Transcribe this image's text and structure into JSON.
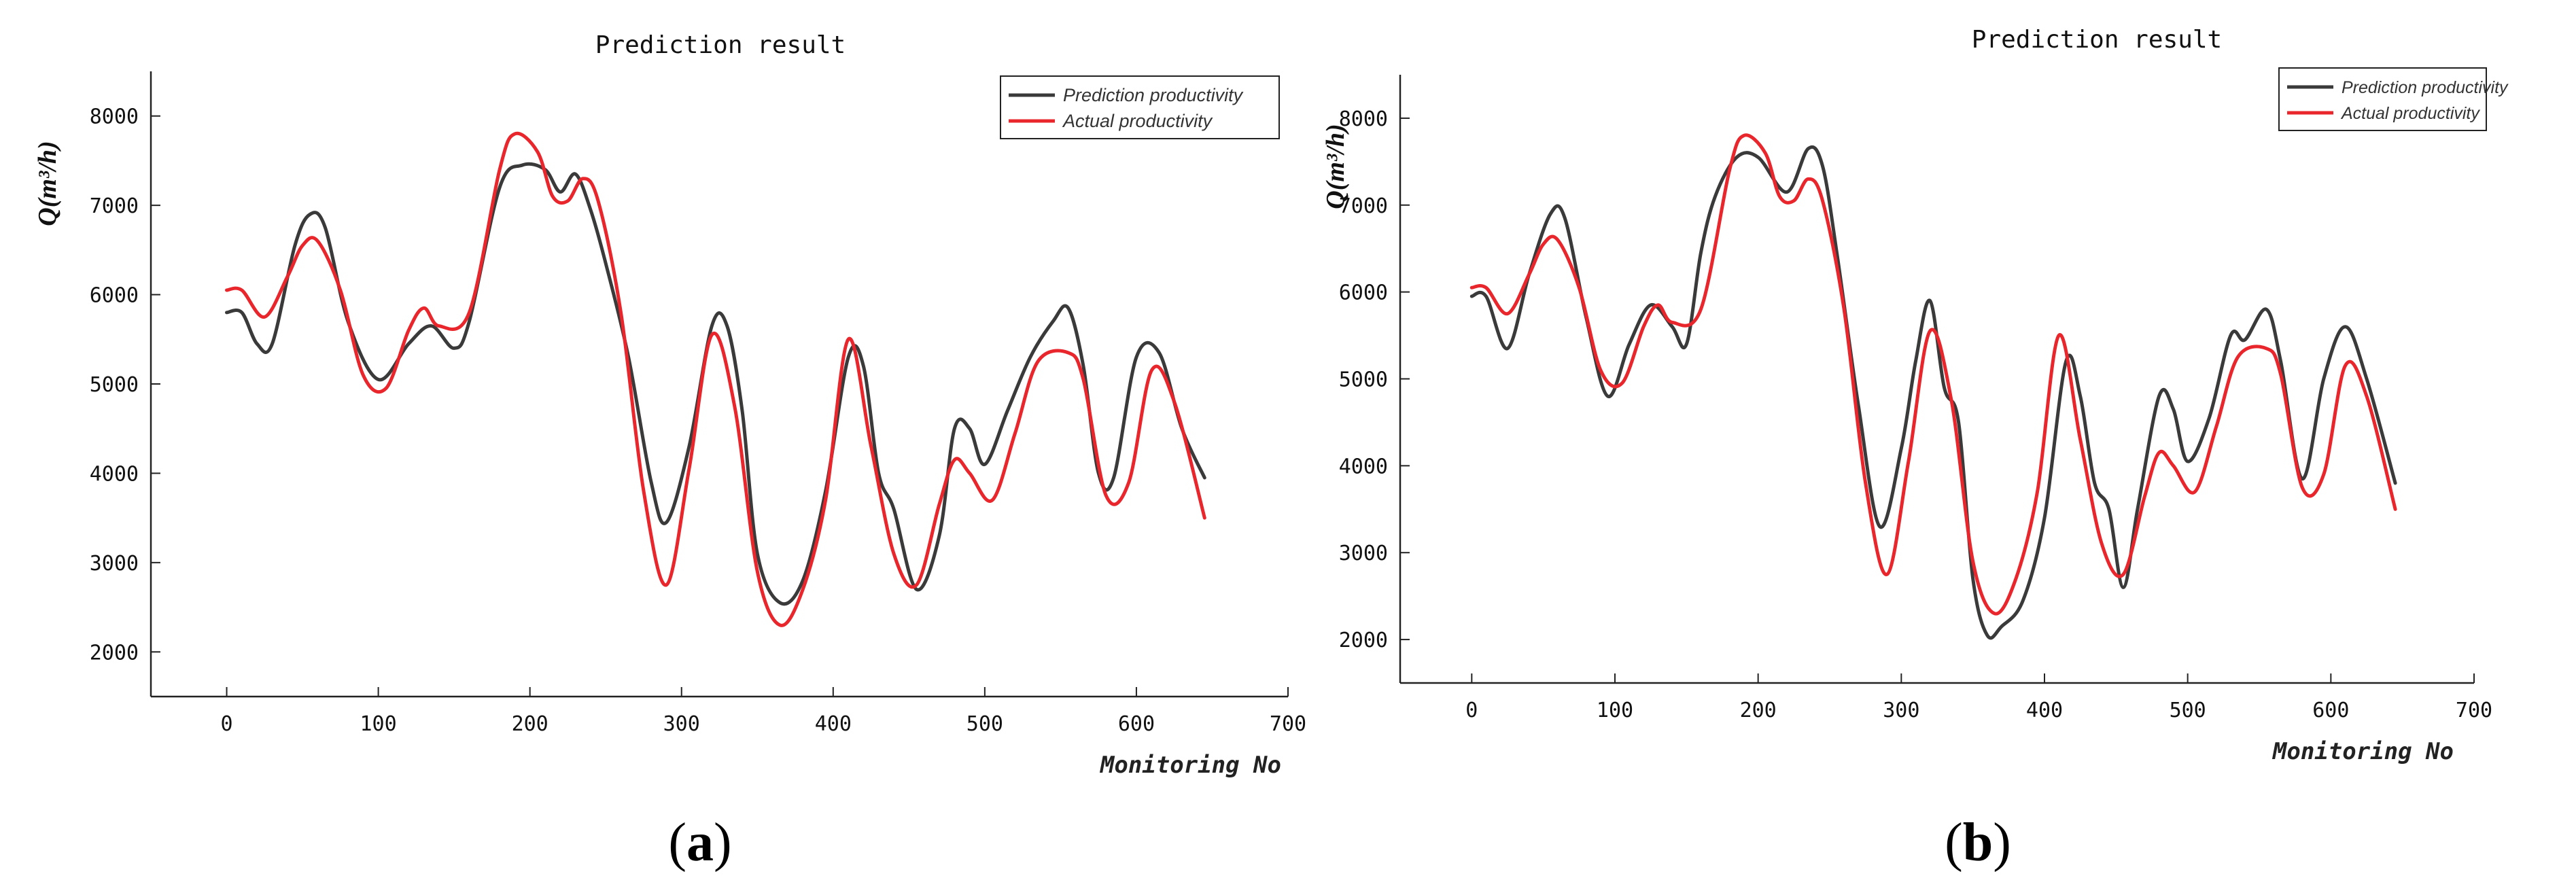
{
  "charts": [
    {
      "panel_label": "a",
      "colors": {
        "prediction": "#3a3a3a",
        "actual": "#e8262c"
      }
    },
    {
      "panel_label": "b",
      "colors": {
        "prediction": "#3a3a3a",
        "actual": "#e8262c"
      }
    }
  ],
  "chart_data": [
    {
      "type": "line",
      "title": "Prediction result",
      "xlabel": "Monitoring No",
      "ylabel": "Q(m³/h)",
      "xlim": [
        -50,
        700
      ],
      "ylim": [
        1500,
        8500
      ],
      "xticks": [
        0,
        100,
        200,
        300,
        400,
        500,
        600,
        700
      ],
      "yticks": [
        2000,
        3000,
        4000,
        5000,
        6000,
        7000,
        8000
      ],
      "legend": "top-right",
      "series": [
        {
          "name": "Prediction productivity",
          "x": [
            0,
            10,
            20,
            30,
            45,
            55,
            65,
            80,
            100,
            120,
            135,
            150,
            160,
            180,
            195,
            210,
            220,
            230,
            240,
            250,
            265,
            280,
            290,
            305,
            320,
            330,
            340,
            350,
            365,
            380,
            395,
            410,
            420,
            430,
            440,
            455,
            470,
            480,
            490,
            500,
            515,
            530,
            545,
            555,
            565,
            575,
            585,
            600,
            615,
            630,
            645
          ],
          "y": [
            5800,
            5800,
            5450,
            5450,
            6550,
            6900,
            6750,
            5700,
            5050,
            5450,
            5650,
            5400,
            5700,
            7200,
            7450,
            7400,
            7150,
            7350,
            6950,
            6350,
            5300,
            3900,
            3450,
            4300,
            5650,
            5650,
            4700,
            3100,
            2550,
            2800,
            3800,
            5300,
            5200,
            4000,
            3600,
            2700,
            3300,
            4500,
            4500,
            4100,
            4700,
            5300,
            5700,
            5850,
            5200,
            4000,
            3950,
            5300,
            5350,
            4500,
            3950
          ]
        },
        {
          "name": "Actual productivity",
          "x": [
            0,
            10,
            25,
            40,
            50,
            60,
            75,
            90,
            105,
            120,
            130,
            140,
            160,
            180,
            190,
            205,
            215,
            225,
            235,
            245,
            260,
            275,
            290,
            305,
            320,
            335,
            350,
            365,
            380,
            395,
            410,
            425,
            440,
            455,
            470,
            480,
            490,
            505,
            520,
            535,
            555,
            565,
            580,
            595,
            610,
            625,
            645
          ],
          "y": [
            6050,
            6050,
            5750,
            6200,
            6550,
            6600,
            6050,
            5100,
            4950,
            5600,
            5850,
            5650,
            5800,
            7400,
            7800,
            7600,
            7100,
            7050,
            7300,
            7050,
            5800,
            3800,
            2750,
            4050,
            5550,
            4750,
            2900,
            2300,
            2700,
            3700,
            5500,
            4300,
            3100,
            2750,
            3650,
            4150,
            4000,
            3700,
            4450,
            5250,
            5350,
            5050,
            3750,
            3900,
            5150,
            4800,
            3500
          ]
        }
      ]
    },
    {
      "type": "line",
      "title": "Prediction result",
      "xlabel": "Monitoring No",
      "ylabel": "Q(m³/h)",
      "xlim": [
        -50,
        700
      ],
      "ylim": [
        1500,
        8500
      ],
      "xticks": [
        0,
        100,
        200,
        300,
        400,
        500,
        600,
        700
      ],
      "yticks": [
        2000,
        3000,
        4000,
        5000,
        6000,
        7000,
        8000
      ],
      "legend": "top-right",
      "series": [
        {
          "name": "Prediction productivity",
          "x": [
            0,
            10,
            25,
            40,
            55,
            65,
            80,
            95,
            110,
            125,
            140,
            150,
            160,
            170,
            185,
            200,
            220,
            235,
            245,
            255,
            270,
            285,
            300,
            310,
            320,
            330,
            340,
            350,
            360,
            370,
            385,
            400,
            415,
            425,
            435,
            445,
            455,
            465,
            480,
            490,
            500,
            515,
            530,
            540,
            555,
            565,
            580,
            595,
            610,
            625,
            645
          ],
          "y": [
            5950,
            5950,
            5350,
            6200,
            6900,
            6850,
            5700,
            4800,
            5400,
            5850,
            5600,
            5400,
            6450,
            7100,
            7550,
            7550,
            7150,
            7650,
            7450,
            6450,
            4700,
            3300,
            4200,
            5200,
            5900,
            4900,
            4500,
            2700,
            2050,
            2150,
            2450,
            3400,
            5200,
            4800,
            3800,
            3500,
            2600,
            3500,
            4800,
            4650,
            4050,
            4550,
            5500,
            5450,
            5800,
            5200,
            3850,
            5000,
            5600,
            5000,
            3800
          ]
        },
        {
          "name": "Actual productivity",
          "x": [
            0,
            10,
            25,
            40,
            50,
            60,
            75,
            90,
            105,
            120,
            130,
            140,
            160,
            180,
            190,
            205,
            215,
            225,
            235,
            245,
            260,
            275,
            290,
            305,
            320,
            335,
            350,
            365,
            380,
            395,
            410,
            425,
            440,
            455,
            470,
            480,
            490,
            505,
            520,
            535,
            555,
            565,
            580,
            595,
            610,
            625,
            645
          ],
          "y": [
            6050,
            6050,
            5750,
            6200,
            6550,
            6600,
            6050,
            5100,
            4950,
            5600,
            5850,
            5650,
            5800,
            7400,
            7800,
            7600,
            7100,
            7050,
            7300,
            7050,
            5800,
            3800,
            2750,
            4050,
            5550,
            4750,
            2900,
            2300,
            2700,
            3700,
            5500,
            4300,
            3100,
            2750,
            3650,
            4150,
            4000,
            3700,
            4450,
            5250,
            5350,
            5050,
            3750,
            3900,
            5150,
            4800,
            3500
          ]
        }
      ]
    }
  ]
}
